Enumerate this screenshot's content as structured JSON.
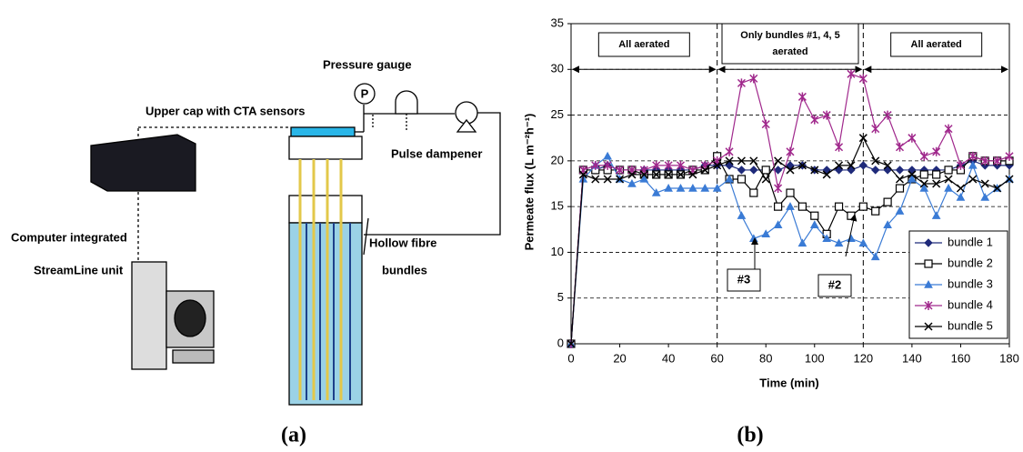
{
  "diagram": {
    "labels": {
      "pressure_gauge": "Pressure gauge",
      "gauge_symbol": "P",
      "upper_cap": "Upper cap with CTA sensors",
      "pulse_dampener": "Pulse dampener",
      "computer_1": "Computer integrated",
      "computer_2": "StreamLine unit",
      "fibre_1": "Hollow fibre",
      "fibre_2": "bundles"
    }
  },
  "captions": [
    "(a)",
    "(b)"
  ],
  "chart_data": {
    "type": "line",
    "x_label": "Time (min)",
    "y_label": "Permeate flux (L m⁻²h⁻¹)",
    "x": [
      0,
      5,
      10,
      15,
      20,
      25,
      30,
      35,
      40,
      45,
      50,
      55,
      60,
      65,
      70,
      75,
      80,
      85,
      90,
      95,
      100,
      105,
      110,
      115,
      120,
      125,
      130,
      135,
      140,
      145,
      150,
      155,
      160,
      165,
      170,
      175,
      180
    ],
    "series": [
      {
        "name": "bundle 1",
        "color": "#1f2a7a",
        "marker": "diamond",
        "values": [
          0,
          19,
          19,
          19.5,
          19,
          19,
          19,
          19,
          19,
          19,
          19,
          19.5,
          19.5,
          19.5,
          19,
          19,
          19,
          19,
          19.5,
          19.5,
          19,
          19,
          19,
          19,
          19.5,
          19,
          19,
          19,
          19,
          19,
          19,
          19,
          19.5,
          20,
          19.5,
          19.5,
          19.5
        ]
      },
      {
        "name": "bundle 2",
        "color": "#000000",
        "marker": "square",
        "values": [
          0,
          19,
          19,
          19,
          19,
          19,
          18.5,
          18.5,
          18.5,
          18.5,
          19,
          19,
          20.5,
          18,
          18,
          16.5,
          19,
          15,
          16.5,
          15,
          14,
          12,
          15,
          14,
          15,
          14.5,
          15.5,
          17,
          18,
          18.5,
          18.5,
          19,
          19,
          20.5,
          20,
          20,
          20
        ]
      },
      {
        "name": "bundle 3",
        "color": "#3a7bd5",
        "marker": "triangle",
        "values": [
          0,
          18,
          19.5,
          20.5,
          18,
          17.5,
          18,
          16.5,
          17,
          17,
          17,
          17,
          17,
          18,
          14,
          11.5,
          12,
          13,
          15,
          11,
          13,
          11.5,
          11,
          11.5,
          11,
          9.5,
          13,
          14.5,
          18,
          17,
          14,
          17,
          16,
          19.5,
          16,
          17,
          18
        ]
      },
      {
        "name": "bundle 4",
        "color": "#a0288c",
        "marker": "star",
        "values": [
          0,
          19,
          19.5,
          19.5,
          19,
          19,
          19,
          19.5,
          19.5,
          19.5,
          19,
          19.5,
          20,
          21,
          28.5,
          29,
          24,
          17,
          21,
          27,
          24.5,
          25,
          21.5,
          29.5,
          29,
          23.5,
          25,
          21.5,
          22.5,
          20.5,
          21,
          23.5,
          19.5,
          20.5,
          20,
          20,
          20.5
        ]
      },
      {
        "name": "bundle 5",
        "color": "#000000",
        "marker": "cross",
        "values": [
          0,
          18.5,
          18,
          18,
          18,
          18.5,
          18.5,
          18.5,
          18.5,
          18.5,
          18.5,
          19,
          19.5,
          20,
          20,
          20,
          18,
          20,
          19,
          19.5,
          19,
          18.5,
          19.5,
          19.5,
          22.5,
          20,
          19.5,
          18,
          18.5,
          17.5,
          17.5,
          18,
          17,
          18,
          17.5,
          17,
          18
        ]
      }
    ],
    "xlim": [
      0,
      180
    ],
    "xticks": [
      0,
      20,
      40,
      60,
      80,
      100,
      120,
      140,
      160,
      180
    ],
    "ylim": [
      0,
      35
    ],
    "yticks": [
      0,
      5,
      10,
      15,
      20,
      25,
      30,
      35
    ],
    "grid": true,
    "legend": "lower right",
    "phase_arrow_y": 30,
    "vlines": [
      60,
      120
    ],
    "phases": [
      {
        "start": 0,
        "end": 60,
        "label": [
          "All aerated"
        ]
      },
      {
        "start": 60,
        "end": 120,
        "label": [
          "Only bundles #1, 4, 5",
          "aerated"
        ]
      },
      {
        "start": 120,
        "end": 180,
        "label": [
          "All aerated"
        ]
      }
    ],
    "annotations": [
      "#3",
      "#2"
    ]
  }
}
